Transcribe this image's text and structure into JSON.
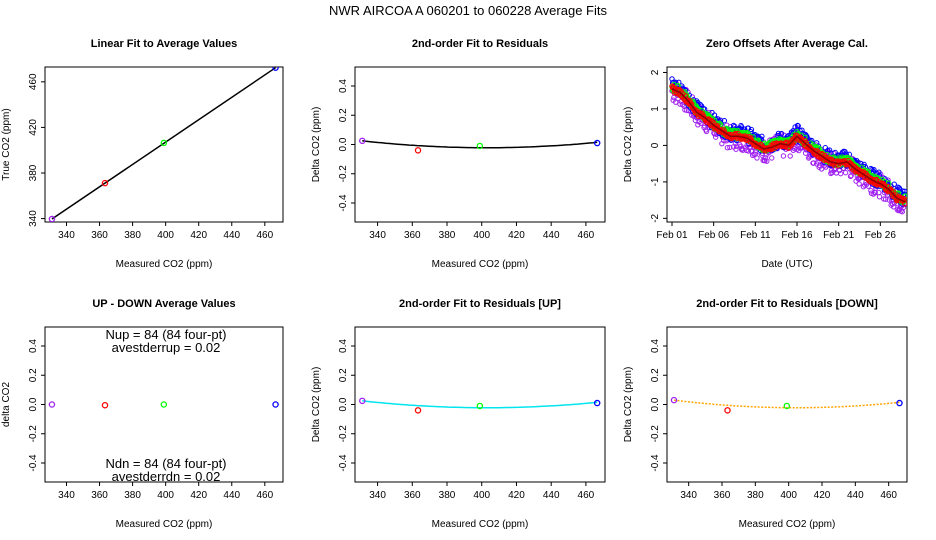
{
  "figure_title": "NWR   AIRCOA A    060201 to 060228    Average Fits",
  "colors": {
    "purple": "#a020f0",
    "red": "#ff0000",
    "green": "#00ff00",
    "blue": "#0000ff",
    "black": "#000000",
    "cyan": "#00e5ee",
    "orange": "#ffa500",
    "darkred": "#8b0000"
  },
  "chart_data": [
    {
      "id": "p1",
      "type": "scatter",
      "title": "Linear Fit to Average Values",
      "xlabel": "Measured CO2 (ppm)",
      "ylabel": "True CO2 (ppm)",
      "xlim": [
        327,
        471
      ],
      "ylim": [
        337,
        473
      ],
      "xticks": [
        340,
        360,
        380,
        400,
        420,
        440,
        460
      ],
      "yticks": [
        340,
        380,
        420,
        460
      ],
      "points": [
        {
          "x": 331.2,
          "y": 339.6,
          "color": "purple"
        },
        {
          "x": 363.3,
          "y": 371.1,
          "color": "red"
        },
        {
          "x": 398.9,
          "y": 406.4,
          "color": "green"
        },
        {
          "x": 466.5,
          "y": 472.4,
          "color": "blue"
        }
      ],
      "fit": {
        "type": "line",
        "x0": 331.2,
        "x1": 466.5,
        "y0": 339.6,
        "y1": 472.4,
        "color": "black"
      }
    },
    {
      "id": "p2",
      "type": "scatter",
      "title": "2nd-order Fit to Residuals",
      "xlabel": "Measured CO2 (ppm)",
      "ylabel": "Delta CO2 (ppm)",
      "xlim": [
        327,
        471
      ],
      "ylim": [
        -0.53,
        0.53
      ],
      "xticks": [
        340,
        360,
        380,
        400,
        420,
        440,
        460
      ],
      "yticks": [
        -0.4,
        -0.2,
        0.0,
        0.2,
        0.4
      ],
      "points": [
        {
          "x": 331.2,
          "y": 0.025,
          "color": "purple"
        },
        {
          "x": 363.3,
          "y": -0.04,
          "color": "red"
        },
        {
          "x": 398.9,
          "y": -0.01,
          "color": "green"
        },
        {
          "x": 466.5,
          "y": 0.01,
          "color": "blue"
        }
      ],
      "fit": {
        "type": "quadratic",
        "x": [
          331.2,
          405,
          466.5
        ],
        "y": [
          0.025,
          -0.022,
          0.015
        ],
        "color": "black"
      }
    },
    {
      "id": "p3",
      "type": "timeseries",
      "title": "Zero Offsets After Average Cal.",
      "xlabel": "Date (UTC)",
      "ylabel": "Delta CO2 (ppm)",
      "xlim": [
        -0.6,
        28.2
      ],
      "ylim": [
        -2.1,
        2.15
      ],
      "xticks": [
        0,
        5,
        10,
        15,
        20,
        25
      ],
      "xticklabels": [
        "Feb 01",
        "Feb 06",
        "Feb 11",
        "Feb 16",
        "Feb 21",
        "Feb 26"
      ],
      "yticks": [
        -2,
        -1,
        0,
        1,
        2
      ],
      "trend": [
        {
          "x": 0,
          "y": 1.55
        },
        {
          "x": 1,
          "y": 1.45
        },
        {
          "x": 2,
          "y": 1.2
        },
        {
          "x": 3,
          "y": 0.9
        },
        {
          "x": 4,
          "y": 0.75
        },
        {
          "x": 5,
          "y": 0.55
        },
        {
          "x": 6,
          "y": 0.4
        },
        {
          "x": 7,
          "y": 0.25
        },
        {
          "x": 8,
          "y": 0.25
        },
        {
          "x": 9,
          "y": 0.2
        },
        {
          "x": 10,
          "y": 0.05
        },
        {
          "x": 11,
          "y": -0.1
        },
        {
          "x": 12,
          "y": -0.05
        },
        {
          "x": 13,
          "y": 0.05
        },
        {
          "x": 14,
          "y": 0.0
        },
        {
          "x": 15,
          "y": 0.25
        },
        {
          "x": 16,
          "y": 0.05
        },
        {
          "x": 17,
          "y": -0.15
        },
        {
          "x": 18,
          "y": -0.3
        },
        {
          "x": 19,
          "y": -0.45
        },
        {
          "x": 20,
          "y": -0.5
        },
        {
          "x": 21,
          "y": -0.45
        },
        {
          "x": 22,
          "y": -0.65
        },
        {
          "x": 23,
          "y": -0.8
        },
        {
          "x": 24,
          "y": -0.95
        },
        {
          "x": 25,
          "y": -1.05
        },
        {
          "x": 26,
          "y": -1.2
        },
        {
          "x": 27,
          "y": -1.45
        },
        {
          "x": 28,
          "y": -1.55
        }
      ],
      "series": [
        {
          "name": "purple",
          "color": "purple",
          "offset": -0.05,
          "spread": 0.32
        },
        {
          "name": "blue",
          "color": "blue",
          "offset": 0.1,
          "spread": 0.22
        },
        {
          "name": "green",
          "color": "green",
          "offset": 0.05,
          "spread": 0.12
        },
        {
          "name": "red",
          "color": "red",
          "offset": 0.0,
          "spread": 0.08
        }
      ],
      "fit": {
        "color": "darkred"
      }
    },
    {
      "id": "p4",
      "type": "scatter",
      "title": "UP - DOWN Average Values",
      "xlabel": "Measured CO2 (ppm)",
      "ylabel": "delta CO2",
      "xlim": [
        327,
        471
      ],
      "ylim": [
        -0.53,
        0.53
      ],
      "xticks": [
        340,
        360,
        380,
        400,
        420,
        440,
        460
      ],
      "yticks": [
        -0.4,
        -0.2,
        0.0,
        0.2,
        0.4
      ],
      "annotations": {
        "up_line1": "Nup = 84 (84 four-pt)",
        "up_line2": "avestderrup =  0.02",
        "dn_line1": "Ndn = 84 (84 four-pt)",
        "dn_line2": "avestderrdn =  0.02"
      },
      "points": [
        {
          "x": 331.2,
          "y": 0.0,
          "color": "purple"
        },
        {
          "x": 363.3,
          "y": -0.005,
          "color": "red"
        },
        {
          "x": 398.9,
          "y": 0.0,
          "color": "green"
        },
        {
          "x": 466.5,
          "y": 0.0,
          "color": "blue"
        }
      ]
    },
    {
      "id": "p5",
      "type": "scatter",
      "title": "2nd-order Fit to Residuals [UP]",
      "xlabel": "Measured CO2 (ppm)",
      "ylabel": "Delta CO2 (ppm)",
      "xlim": [
        327,
        471
      ],
      "ylim": [
        -0.53,
        0.53
      ],
      "xticks": [
        340,
        360,
        380,
        400,
        420,
        440,
        460
      ],
      "yticks": [
        -0.4,
        -0.2,
        0.0,
        0.2,
        0.4
      ],
      "points": [
        {
          "x": 331.2,
          "y": 0.025,
          "color": "purple"
        },
        {
          "x": 363.3,
          "y": -0.04,
          "color": "red"
        },
        {
          "x": 398.9,
          "y": -0.01,
          "color": "green"
        },
        {
          "x": 466.5,
          "y": 0.01,
          "color": "blue"
        }
      ],
      "fit": {
        "type": "quadratic",
        "x": [
          331.2,
          405,
          466.5
        ],
        "y": [
          0.025,
          -0.022,
          0.015
        ],
        "color": "cyan"
      }
    },
    {
      "id": "p6",
      "type": "scatter",
      "title": "2nd-order Fit to Residuals [DOWN]",
      "xlabel": "Measured CO2 (ppm)",
      "ylabel": "Delta CO2 (ppm)",
      "xlim": [
        327,
        471
      ],
      "ylim": [
        -0.53,
        0.53
      ],
      "xticks": [
        340,
        360,
        380,
        400,
        420,
        440,
        460
      ],
      "yticks": [
        -0.4,
        -0.2,
        0.0,
        0.2,
        0.4
      ],
      "points": [
        {
          "x": 331.2,
          "y": 0.03,
          "color": "purple"
        },
        {
          "x": 363.3,
          "y": -0.04,
          "color": "red"
        },
        {
          "x": 398.9,
          "y": -0.01,
          "color": "green"
        },
        {
          "x": 466.5,
          "y": 0.01,
          "color": "blue"
        }
      ],
      "fit": {
        "type": "quadratic",
        "x": [
          331.2,
          405,
          466.5
        ],
        "y": [
          0.03,
          -0.022,
          0.015
        ],
        "color": "orange"
      }
    }
  ]
}
